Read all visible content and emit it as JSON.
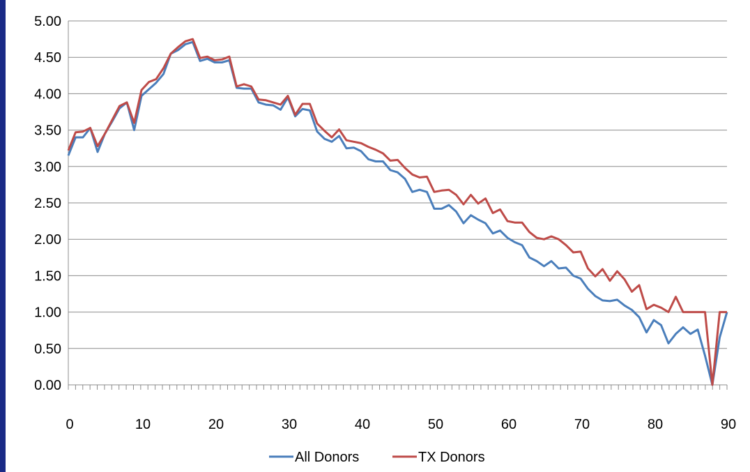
{
  "chart_data": {
    "type": "line",
    "title": "",
    "xlabel": "",
    "ylabel": "",
    "xlim": [
      0,
      90
    ],
    "ylim": [
      0,
      5
    ],
    "x_ticks": [
      "0",
      "10",
      "20",
      "30",
      "40",
      "50",
      "60",
      "70",
      "80",
      "90"
    ],
    "x_tick_values": [
      0,
      10,
      20,
      30,
      40,
      50,
      60,
      70,
      80,
      90
    ],
    "y_ticks": [
      "0.00",
      "0.50",
      "1.00",
      "1.50",
      "2.00",
      "2.50",
      "3.00",
      "3.50",
      "4.00",
      "4.50",
      "5.00"
    ],
    "y_tick_values": [
      0,
      0.5,
      1,
      1.5,
      2,
      2.5,
      3,
      3.5,
      4,
      4.5,
      5
    ],
    "grid": "horizontal",
    "legend": "bottom",
    "x": [
      0,
      1,
      2,
      3,
      4,
      5,
      6,
      7,
      8,
      9,
      10,
      11,
      12,
      13,
      14,
      15,
      16,
      17,
      18,
      19,
      20,
      21,
      22,
      23,
      24,
      25,
      26,
      27,
      28,
      29,
      30,
      31,
      32,
      33,
      34,
      35,
      36,
      37,
      38,
      39,
      40,
      41,
      42,
      43,
      44,
      45,
      46,
      47,
      48,
      49,
      50,
      51,
      52,
      53,
      54,
      55,
      56,
      57,
      58,
      59,
      60,
      61,
      62,
      63,
      64,
      65,
      66,
      67,
      68,
      69,
      70,
      71,
      72,
      73,
      74,
      75,
      76,
      77,
      78,
      79,
      80,
      81,
      82,
      83,
      84,
      85,
      86,
      87,
      88,
      89,
      90
    ],
    "series": [
      {
        "name": "All Donors",
        "color": "#4a7ebb",
        "values": [
          3.15,
          3.4,
          3.4,
          3.53,
          3.2,
          3.45,
          3.62,
          3.8,
          3.88,
          3.5,
          3.97,
          4.06,
          4.15,
          4.27,
          4.55,
          4.6,
          4.68,
          4.71,
          4.45,
          4.48,
          4.43,
          4.43,
          4.46,
          4.08,
          4.07,
          4.07,
          3.88,
          3.85,
          3.84,
          3.78,
          3.95,
          3.69,
          3.79,
          3.77,
          3.48,
          3.38,
          3.34,
          3.42,
          3.25,
          3.26,
          3.21,
          3.1,
          3.07,
          3.07,
          2.95,
          2.92,
          2.83,
          2.65,
          2.68,
          2.65,
          2.42,
          2.42,
          2.47,
          2.38,
          2.22,
          2.33,
          2.27,
          2.22,
          2.08,
          2.12,
          2.02,
          1.96,
          1.92,
          1.75,
          1.7,
          1.63,
          1.7,
          1.6,
          1.61,
          1.5,
          1.46,
          1.32,
          1.22,
          1.16,
          1.15,
          1.17,
          1.09,
          1.03,
          0.93,
          0.72,
          0.89,
          0.82,
          0.57,
          0.7,
          0.79,
          0.7,
          0.76,
          0.4,
          0.0,
          0.65,
          1.0
        ]
      },
      {
        "name": "TX Donors",
        "color": "#be4b48",
        "values": [
          3.22,
          3.47,
          3.48,
          3.53,
          3.28,
          3.45,
          3.64,
          3.83,
          3.88,
          3.6,
          4.05,
          4.16,
          4.2,
          4.35,
          4.55,
          4.64,
          4.72,
          4.75,
          4.49,
          4.51,
          4.46,
          4.47,
          4.51,
          4.1,
          4.13,
          4.1,
          3.92,
          3.91,
          3.88,
          3.85,
          3.97,
          3.71,
          3.86,
          3.86,
          3.59,
          3.49,
          3.4,
          3.51,
          3.36,
          3.34,
          3.32,
          3.27,
          3.23,
          3.18,
          3.08,
          3.09,
          2.98,
          2.89,
          2.85,
          2.86,
          2.65,
          2.67,
          2.68,
          2.61,
          2.48,
          2.61,
          2.49,
          2.56,
          2.36,
          2.41,
          2.25,
          2.23,
          2.23,
          2.1,
          2.02,
          2.0,
          2.04,
          2.0,
          1.92,
          1.82,
          1.83,
          1.6,
          1.49,
          1.59,
          1.43,
          1.56,
          1.45,
          1.28,
          1.37,
          1.04,
          1.1,
          1.06,
          1.0,
          1.21,
          1.0,
          1.0,
          1.0,
          1.0,
          0.0,
          1.0,
          1.0
        ]
      }
    ]
  }
}
